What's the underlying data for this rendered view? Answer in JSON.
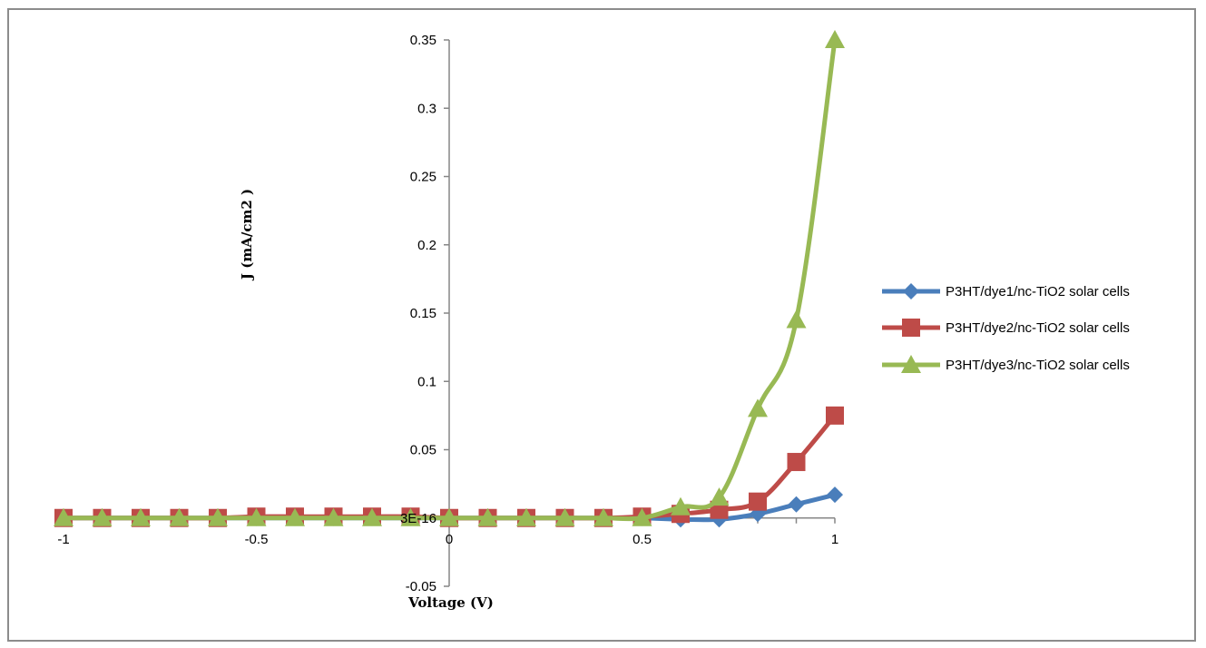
{
  "chart_data": {
    "type": "line",
    "xlabel": "Voltage (V)",
    "ylabel": "J (mA/cm2 )",
    "xlim": [
      -1,
      1
    ],
    "ylim": [
      -0.05,
      0.35
    ],
    "x_ticks": [
      "-1",
      "-0.5",
      "0",
      "0.5",
      "1"
    ],
    "x_tick_values": [
      -1,
      -0.5,
      0,
      0.5,
      1
    ],
    "y_ticks": [
      "-0.05",
      "3E-16",
      "0.05",
      "0.1",
      "0.15",
      "0.2",
      "0.25",
      "0.3",
      "0.35"
    ],
    "y_tick_values": [
      -0.05,
      0,
      0.05,
      0.1,
      0.15,
      0.2,
      0.25,
      0.3,
      0.35
    ],
    "x": [
      -1,
      -0.9,
      -0.8,
      -0.7,
      -0.6,
      -0.5,
      -0.4,
      -0.3,
      -0.2,
      -0.1,
      0,
      0.1,
      0.2,
      0.3,
      0.4,
      0.5,
      0.6,
      0.7,
      0.8,
      0.9,
      1
    ],
    "legend_position": "right",
    "grid": false,
    "series": [
      {
        "name": "P3HT/dye1/nc-TiO2 solar cells",
        "color": "#4a7ebb",
        "marker": "diamond",
        "values": [
          0,
          0,
          0,
          0,
          0,
          0,
          0,
          0,
          0,
          0,
          0,
          0,
          0,
          0,
          0,
          0,
          -0.001,
          -0.001,
          0.003,
          0.01,
          0.017
        ]
      },
      {
        "name": "P3HT/dye2/nc-TiO2 solar cells",
        "color": "#be4b48",
        "marker": "square",
        "values": [
          0,
          0,
          0,
          0,
          0,
          0.001,
          0.001,
          0.001,
          0.001,
          0.001,
          0,
          0,
          0,
          0,
          0,
          0.001,
          0.003,
          0.006,
          0.012,
          0.041,
          0.075
        ]
      },
      {
        "name": "P3HT/dye3/nc-TiO2 solar cells",
        "color": "#98b954",
        "marker": "triangle",
        "values": [
          0,
          0,
          0,
          0,
          0,
          0,
          0,
          0,
          0,
          0,
          0,
          0,
          0,
          0,
          0,
          0,
          0.008,
          0.015,
          0.08,
          0.145,
          0.35
        ]
      }
    ]
  }
}
